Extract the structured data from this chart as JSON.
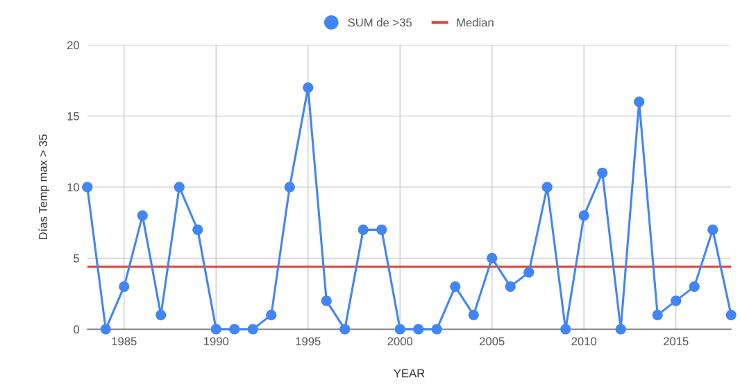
{
  "chart_data": {
    "type": "line",
    "xlabel": "YEAR",
    "ylabel": "Días Temp max > 35",
    "x": [
      1983,
      1984,
      1985,
      1986,
      1987,
      1988,
      1989,
      1990,
      1991,
      1992,
      1993,
      1994,
      1995,
      1996,
      1997,
      1998,
      1999,
      2000,
      2001,
      2002,
      2003,
      2004,
      2005,
      2006,
      2007,
      2008,
      2009,
      2010,
      2011,
      2012,
      2013,
      2014,
      2015,
      2016,
      2017,
      2018
    ],
    "series": [
      {
        "name": "SUM de >35",
        "color": "#4285f4",
        "values": [
          10,
          0,
          3,
          8,
          1,
          10,
          7,
          0,
          0,
          0,
          1,
          10,
          17,
          2,
          0,
          7,
          7,
          0,
          0,
          0,
          3,
          1,
          5,
          3,
          4,
          10,
          0,
          8,
          11,
          0,
          16,
          1,
          2,
          3,
          7,
          1
        ]
      }
    ],
    "ref_lines": [
      {
        "axis": "y",
        "value": 4.4,
        "label": "Median",
        "color": "#db4437"
      }
    ],
    "xlim": [
      1983,
      2018
    ],
    "xticks": [
      1985,
      1990,
      1995,
      2000,
      2005,
      2010,
      2015
    ],
    "ylim": [
      0,
      20
    ],
    "yticks": [
      0,
      5,
      10,
      15,
      20
    ],
    "grid": true,
    "legend": "top",
    "marker": "circle",
    "line_style": "solid"
  }
}
